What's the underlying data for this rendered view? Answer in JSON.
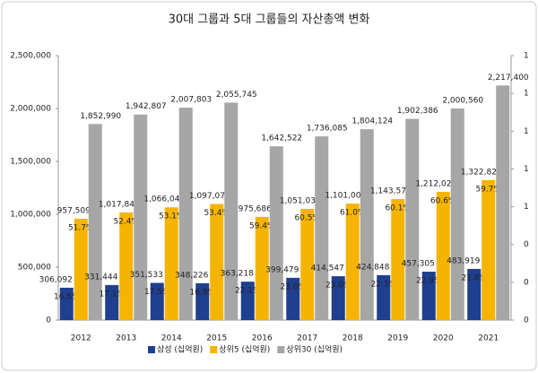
{
  "chart_data": {
    "type": "bar",
    "title": "30대 그룹과 5대 그룹들의 자산총액 변화",
    "categories": [
      "2012",
      "2013",
      "2014",
      "2015",
      "2016",
      "2017",
      "2018",
      "2019",
      "2020",
      "2021"
    ],
    "series": [
      {
        "name": "삼성 (십억원)",
        "color": "#1f3f8f",
        "values": [
          306092,
          331444,
          351533,
          348226,
          363218,
          399479,
          414547,
          424848,
          457305,
          483919
        ],
        "value_labels": [
          "306,092",
          "331,444",
          "351,533",
          "348,226",
          "363,218",
          "399,479",
          "414,547",
          "424,848",
          "457,305",
          "483,919"
        ],
        "share_labels": [
          "16.5%",
          "17.1%",
          "17.5%",
          "16.9%",
          "22.1%",
          "23.0%",
          "23.0%",
          "22.3%",
          "22.9%",
          "21.8%"
        ]
      },
      {
        "name": "상위5 (십억원)",
        "color": "#f5b400",
        "values": [
          957509,
          1017849,
          1066049,
          1097076,
          975686,
          1051038,
          1101008,
          1143571,
          1212022,
          1322823
        ],
        "value_labels": [
          "957,509",
          "1,017,849",
          "1,066,049",
          "1,097,076",
          "975,686",
          "1,051,038",
          "1,101,008",
          "1,143,571",
          "1,212,022",
          "1,322,823"
        ],
        "share_labels": [
          "51.7%",
          "52.4%",
          "53.1%",
          "53.4%",
          "59.4%",
          "60.5%",
          "61.0%",
          "60.1%",
          "60.6%",
          "59.7%"
        ]
      },
      {
        "name": "상위30 (십억원)",
        "color": "#a6a6a6",
        "values": [
          1852990,
          1942807,
          2007803,
          2055745,
          1642522,
          1736085,
          1804124,
          1902386,
          2000560,
          2217400
        ],
        "value_labels": [
          "1,852,990",
          "1,942,807",
          "2,007,803",
          "2,055,745",
          "1,642,522",
          "1,736,085",
          "1,804,124",
          "1,902,386",
          "2,000,560",
          "2,217,400"
        ]
      }
    ],
    "ylim": [
      0,
      2500000
    ],
    "yticks": [
      0,
      {
        "value": 500000,
        "label": "500,000"
      },
      {
        "value": 1000000,
        "label": "1,000,000"
      },
      {
        "value": 1500000,
        "label": "1,500,000"
      },
      {
        "value": 2000000,
        "label": "2,000,000"
      },
      {
        "value": 2500000,
        "label": "2,500,000"
      }
    ],
    "y2lim": [
      0,
      1.4
    ],
    "y2ticks": [
      0,
      {
        "value": 0.2,
        "label": "0"
      },
      {
        "value": 0.4,
        "label": "0"
      },
      {
        "value": 0.6,
        "label": "1"
      },
      {
        "value": 0.8,
        "label": "1"
      },
      {
        "value": 1,
        "label": "1"
      },
      {
        "value": 1.2,
        "label": "1"
      },
      {
        "value": 1.4,
        "label": "1"
      }
    ]
  }
}
